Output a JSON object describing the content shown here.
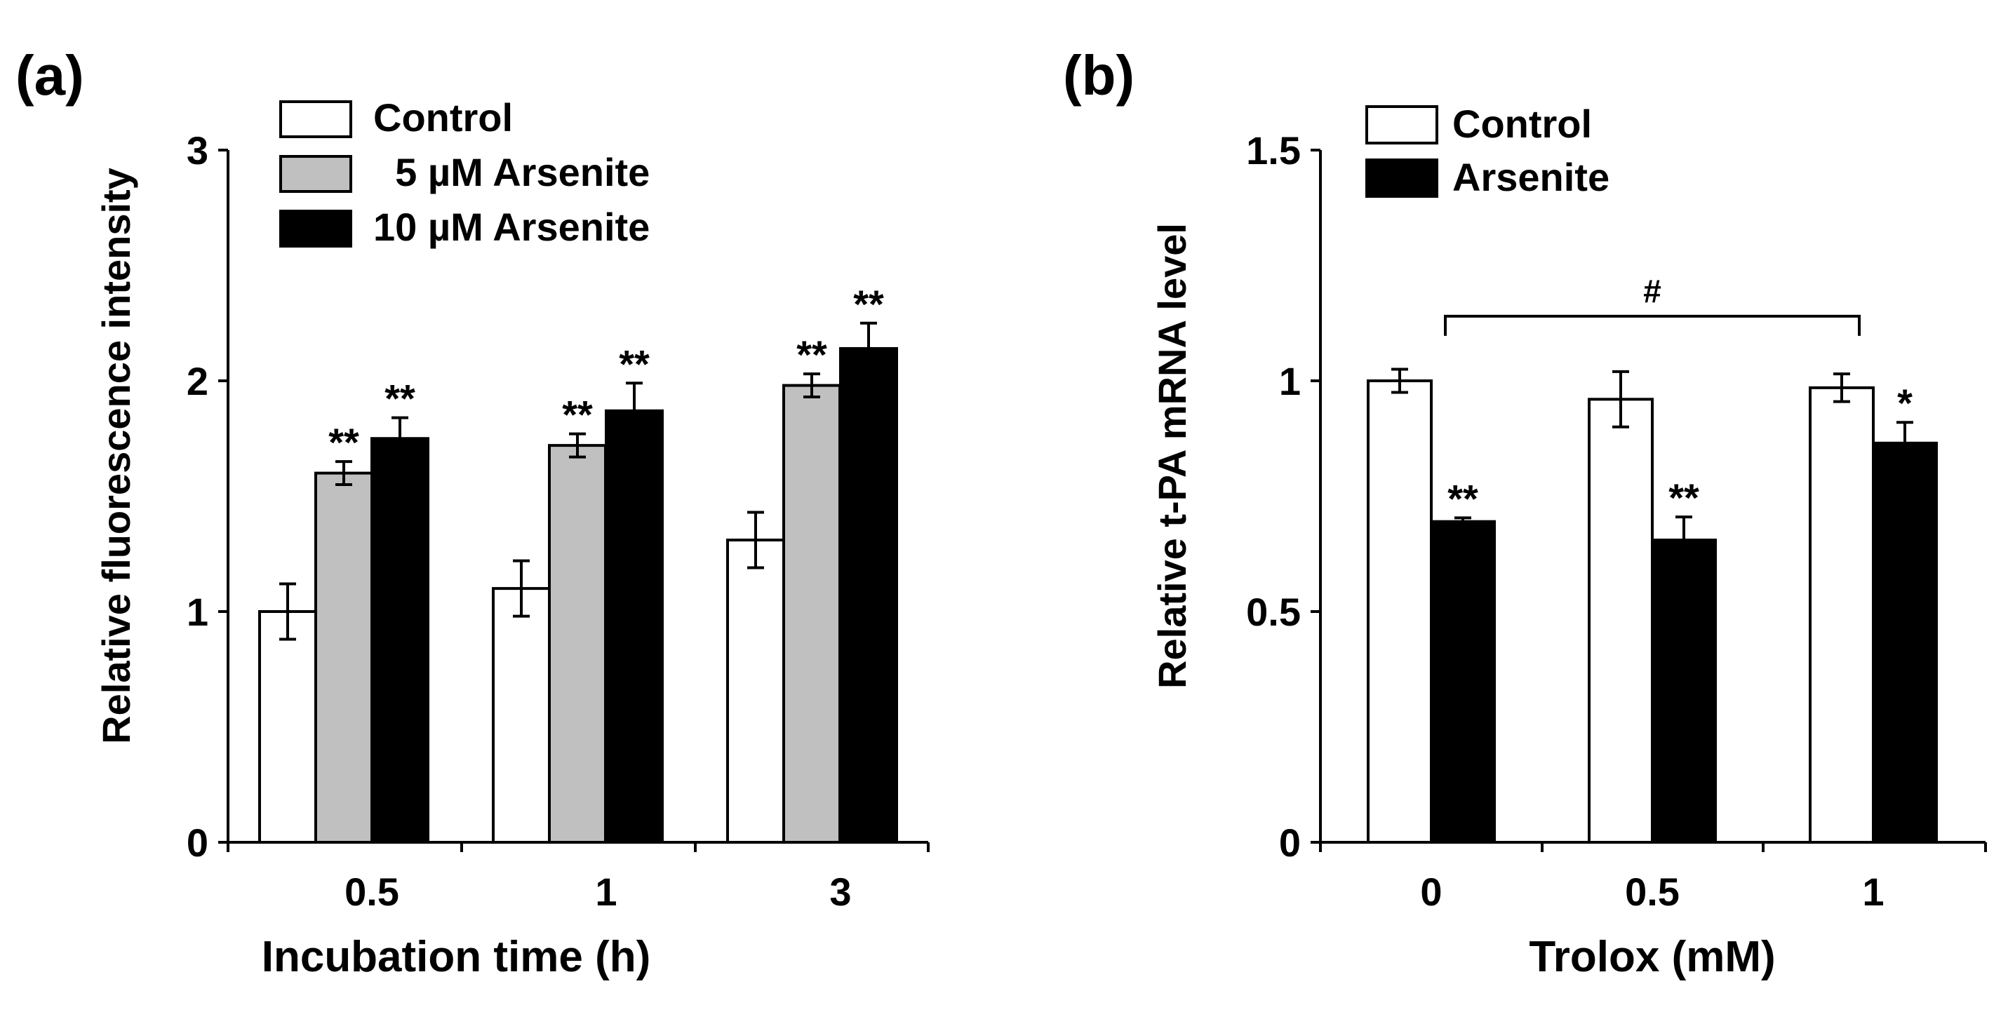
{
  "chart_data": [
    {
      "panel_label": "(a)",
      "type": "bar",
      "title": "",
      "xlabel": "Incubation time (h)",
      "ylabel": "Relative fluorescence intensity",
      "ylim": [
        0,
        3
      ],
      "yticks": [
        "0",
        "1",
        "2",
        "3"
      ],
      "categories": [
        "0.5",
        "1",
        "3"
      ],
      "series": [
        {
          "name": "Control",
          "fill": "#ffffff",
          "values": [
            1.0,
            1.1,
            1.31
          ],
          "errors": [
            0.12,
            0.12,
            0.12
          ],
          "marks": [
            "",
            "",
            ""
          ]
        },
        {
          "name": "5 µM Arsenite",
          "legend_label": "  5 µM Arsenite",
          "fill": "#c0c0c0",
          "values": [
            1.6,
            1.72,
            1.98
          ],
          "errors": [
            0.05,
            0.05,
            0.05
          ],
          "marks": [
            "**",
            "**",
            "**"
          ]
        },
        {
          "name": "10 µM Arsenite",
          "fill": "#000000",
          "values": [
            1.75,
            1.87,
            2.14
          ],
          "errors": [
            0.09,
            0.12,
            0.11
          ],
          "marks": [
            "**",
            "**",
            "**"
          ]
        }
      ],
      "legend_position": "top-left"
    },
    {
      "panel_label": "(b)",
      "type": "bar",
      "title": "",
      "xlabel": "Trolox (mM)",
      "ylabel": "Relative t-PA mRNA level",
      "ylim": [
        0,
        1.5
      ],
      "yticks": [
        "0",
        "0.5",
        "1",
        "1.5"
      ],
      "categories": [
        "0",
        "0.5",
        "1"
      ],
      "series": [
        {
          "name": "Control",
          "fill": "#ffffff",
          "values": [
            1.0,
            0.96,
            0.985
          ],
          "errors": [
            0.025,
            0.06,
            0.03
          ],
          "marks": [
            "",
            "",
            ""
          ]
        },
        {
          "name": "Arsenite",
          "fill": "#000000",
          "values": [
            0.695,
            0.655,
            0.865
          ],
          "errors": [
            0.008,
            0.05,
            0.045
          ],
          "marks": [
            "**",
            "**",
            "*"
          ]
        }
      ],
      "legend_position": "top-left",
      "annotations": [
        {
          "text": "#",
          "from_category": "0",
          "to_category": "1",
          "y": 1.14
        }
      ]
    }
  ]
}
